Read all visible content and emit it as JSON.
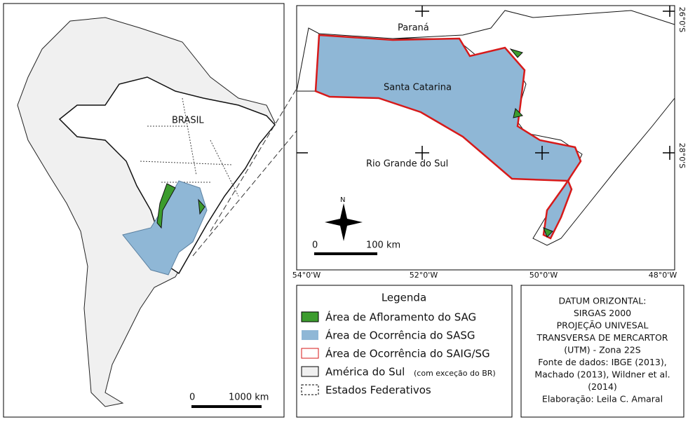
{
  "left_map": {
    "country_label": "BRASIL",
    "scale": {
      "start": "0",
      "end": "1000 km"
    }
  },
  "right_map": {
    "labels": [
      "Paraná",
      "Santa Catarina",
      "Rio Grande do Sul"
    ],
    "north": "N",
    "scale": {
      "start": "0",
      "end": "100 km"
    },
    "longitudes": [
      "54°0'W",
      "52°0'W",
      "50°0'W",
      "48°0'W"
    ],
    "latitudes": [
      "26°0'S",
      "28°0'S"
    ]
  },
  "legend": {
    "title": "Legenda",
    "items": [
      "Área de Afloramento do SAG",
      "Área de Ocorrência do SASG",
      "Área de Ocorrência do SAIG/SG",
      "América do Sul",
      "Estados Federativos"
    ],
    "note": "(com exceção do BR)"
  },
  "info": {
    "lines": [
      "DATUM ORIZONTAL:",
      "SIRGAS 2000",
      "PROJEÇÃO UNIVESAL",
      "TRANSVERSA DE MERCARTOR",
      "(UTM) - Zona 22S",
      "Fonte de dados: IBGE (2013),",
      "Machado (2013), Wildner et al.",
      "(2014)",
      "Elaboração: Leila C. Amaral"
    ]
  }
}
